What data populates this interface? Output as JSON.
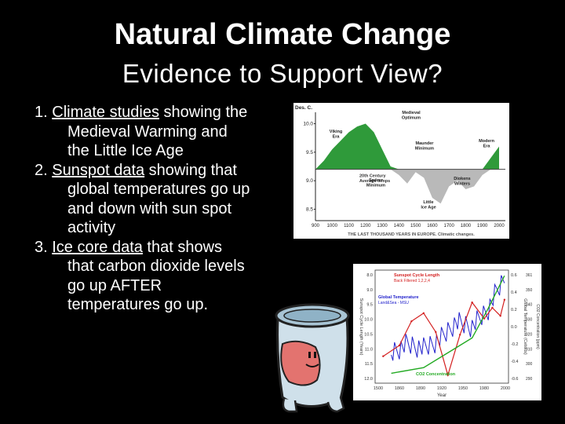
{
  "slide": {
    "title": "Natural Climate Change",
    "subtitle": "Evidence to Support View?"
  },
  "bullets": [
    {
      "num": "1. ",
      "lead": "Climate studies",
      "first_rest": " showing the",
      "cont": [
        "Medieval Warming and",
        "the Little Ice Age"
      ]
    },
    {
      "num": "2. ",
      "lead": "Sunspot data",
      "first_rest": " showing that",
      "cont": [
        "global temperatures go up",
        "and down with sun spot",
        "activity"
      ]
    },
    {
      "num": "3. ",
      "lead": "Ice core data",
      "first_rest": " that shows",
      "cont": [
        "that carbon dioxide levels",
        "go up AFTER",
        "temperatures go up."
      ]
    }
  ],
  "chart_data": [
    {
      "type": "area",
      "ylabel": "Des. C.",
      "x_ticks": [
        "900",
        "1000",
        "1100",
        "1200",
        "1300",
        "1400",
        "1500",
        "1600",
        "1700",
        "1800",
        "1900",
        "2000"
      ],
      "y_ticks": [
        "10.0",
        "9.5",
        "9.0",
        "8.5"
      ],
      "ylim": [
        8.3,
        10.2
      ],
      "baseline": 9.2,
      "baseline_label": [
        "20th Century",
        "Average temps"
      ],
      "annotations": [
        {
          "lines": [
            "Medieval",
            "Optimum"
          ]
        },
        {
          "lines": [
            "Viking",
            "Era"
          ]
        },
        {
          "lines": [
            "Maunder",
            "Minimum"
          ]
        },
        {
          "lines": [
            "Modern",
            "Era"
          ]
        },
        {
          "lines": [
            "Spörer",
            "Minimum"
          ]
        },
        {
          "lines": [
            "Diokens",
            "Winters"
          ]
        },
        {
          "lines": [
            "Little",
            "Ice Age"
          ]
        }
      ],
      "caption": "THE LAST THOUSAND YEARS IN EUROPE. Climatic changes.",
      "x": [
        900,
        950,
        1000,
        1050,
        1100,
        1150,
        1200,
        1250,
        1300,
        1350,
        1400,
        1450,
        1500,
        1550,
        1600,
        1650,
        1700,
        1750,
        1800,
        1850,
        1900,
        1950,
        2000
      ],
      "values": [
        9.2,
        9.35,
        9.55,
        9.7,
        9.85,
        9.95,
        10.0,
        9.85,
        9.55,
        9.25,
        9.1,
        8.95,
        9.15,
        9.05,
        8.7,
        8.6,
        8.9,
        9.0,
        8.85,
        8.9,
        9.1,
        9.4,
        9.6
      ]
    },
    {
      "type": "line",
      "xlabel": "Year",
      "ylabel_left": "Sunspot Cycle Length (Years)",
      "ylabel_right": "Global Temperature (Celsius)",
      "ylabel_right2": "CO2 Concentration (ppm)",
      "x_ticks": [
        "1500",
        "1860",
        "1890",
        "1920",
        "1950",
        "1980",
        "2000"
      ],
      "y_ticks_left": [
        "8.0",
        "9.0",
        "9.5",
        "10.0",
        "10.5",
        "11.0",
        "11.5",
        "12.0"
      ],
      "y_ticks_right": [
        "0.6",
        "0.4",
        "0.2",
        "0.0",
        "-0.2",
        "-0.4",
        "-0.6"
      ],
      "y_ticks_right2": [
        "361",
        "350",
        "340",
        "330",
        "320",
        "310",
        "300",
        "290"
      ],
      "legend": [
        {
          "name": "Sunspot Cycle Length",
          "sub": "Back Filtered 1,2,2,4",
          "color": "#d42020"
        },
        {
          "name": "Global Temperature",
          "sub": "Land&Sea - MSU",
          "color": "#2222cc"
        },
        {
          "name": "CO2 Concentration",
          "color": "#22aa22"
        }
      ],
      "series": [
        {
          "name": "Sunspot Cycle Length",
          "color": "#d42020",
          "x": [
            1850,
            1870,
            1885,
            1900,
            1915,
            1930,
            1945,
            1960,
            1975,
            1985,
            1995,
            2000
          ],
          "values": [
            11.2,
            10.8,
            9.9,
            9.6,
            10.3,
            11.9,
            10.4,
            9.2,
            9.8,
            9.4,
            9.7,
            9.1
          ]
        },
        {
          "name": "Global Temperature",
          "color": "#2222cc",
          "x": [
            1860,
            1880,
            1900,
            1920,
            1940,
            1960,
            1980,
            1990,
            2000
          ],
          "values": [
            -0.3,
            -0.2,
            -0.25,
            -0.15,
            0.05,
            0.0,
            0.2,
            0.4,
            0.55
          ]
        },
        {
          "name": "CO2 Concentration",
          "color": "#22aa22",
          "x": [
            1860,
            1900,
            1940,
            1960,
            1980,
            2000
          ],
          "values": [
            292,
            296,
            310,
            317,
            338,
            361
          ]
        }
      ]
    }
  ]
}
